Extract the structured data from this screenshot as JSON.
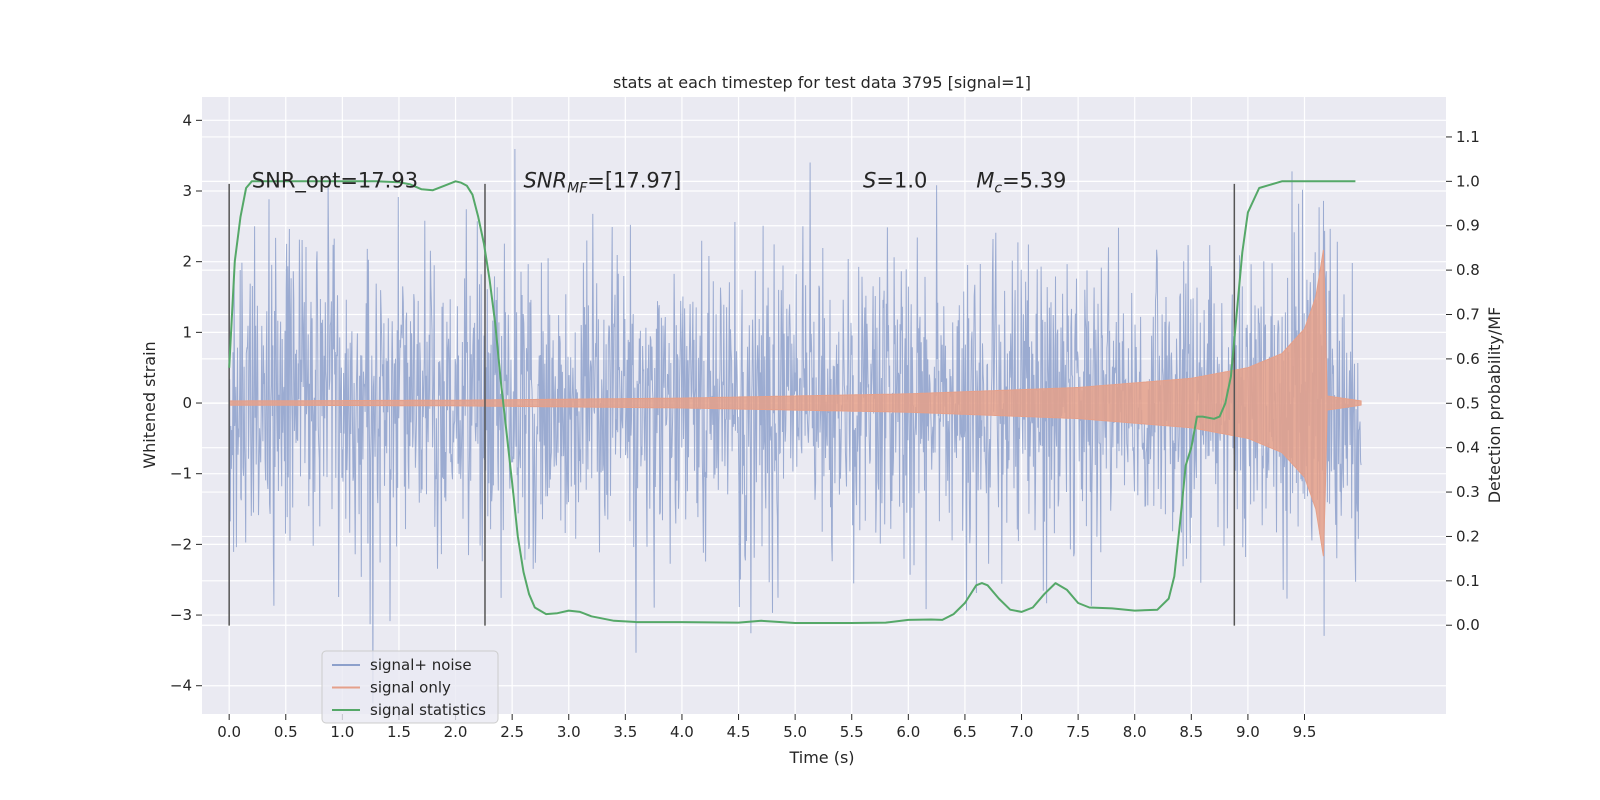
{
  "chart_data": {
    "type": "line",
    "title": "stats at each timestep for test data 3795 [signal=1]",
    "xlabel": "Time (s)",
    "ylabel": "Whitened strain",
    "y2label": "Detection probability/MF",
    "xlim": [
      -0.24,
      10.75
    ],
    "ylim": [
      -4.4,
      4.33
    ],
    "y2lim": [
      -0.2,
      1.19
    ],
    "xticks": [
      0.0,
      0.5,
      1.0,
      1.5,
      2.0,
      2.5,
      3.0,
      3.5,
      4.0,
      4.5,
      5.0,
      5.5,
      6.0,
      6.5,
      7.0,
      7.5,
      8.0,
      8.5,
      9.0,
      9.5
    ],
    "xtick_labels": [
      "0.0",
      "0.5",
      "1.0",
      "1.5",
      "2.0",
      "2.5",
      "3.0",
      "3.5",
      "4.0",
      "4.5",
      "5.0",
      "5.5",
      "6.0",
      "6.5",
      "7.0",
      "7.5",
      "8.0",
      "8.5",
      "9.0",
      "9.5"
    ],
    "yticks": [
      4,
      3,
      2,
      1,
      0,
      -1,
      -2,
      -3,
      -4
    ],
    "ytick_labels": [
      "4",
      "3",
      "2",
      "1",
      "0",
      "−1",
      "−2",
      "−3",
      "−4"
    ],
    "y2ticks": [
      1.1,
      1.0,
      0.9,
      0.8,
      0.7,
      0.6,
      0.5,
      0.4,
      0.3,
      0.2,
      0.1,
      0.0
    ],
    "y2tick_labels": [
      "1.1",
      "1.0",
      "0.9",
      "0.8",
      "0.7",
      "0.6",
      "0.5",
      "0.4",
      "0.3",
      "0.2",
      "0.1",
      "0.0"
    ],
    "grid": true,
    "legend_position": "lower-left",
    "annotations": [
      {
        "text": "SNR_opt=17.93",
        "x": 0.2,
        "y": 3.05
      },
      {
        "text_main": "SNR",
        "text_sub": "MF",
        "text_tail": "=[17.97]",
        "x": 2.6,
        "y": 3.05
      },
      {
        "text_main": "S",
        "text_tail": "=1.0",
        "x": 5.6,
        "y": 3.05
      },
      {
        "text_main": "M",
        "text_sub": "c",
        "text_tail": "=5.39",
        "x": 6.6,
        "y": 3.05
      }
    ],
    "vertical_lines": [
      {
        "x": 0.0,
        "y_range": [
          -3.15,
          3.1
        ]
      },
      {
        "x": 2.26,
        "y_range": [
          -3.15,
          3.1
        ]
      },
      {
        "x": 8.88,
        "y_range": [
          -3.15,
          3.1
        ]
      }
    ],
    "series": [
      {
        "name": "signal+ noise",
        "color": "#8da0cb",
        "axis": "left",
        "duration": 10.0,
        "sample_rate": 204.8,
        "noise_sigma": 1.0,
        "signal_peak_time": 9.67,
        "signal_peak_amp": 2.2
      },
      {
        "name": "signal only",
        "color": "#e5a08a",
        "axis": "left",
        "peak_time": 9.67,
        "peak_amplitude": 2.2,
        "envelope_points": [
          [
            0.0,
            0.03
          ],
          [
            2.0,
            0.04
          ],
          [
            4.0,
            0.07
          ],
          [
            6.0,
            0.13
          ],
          [
            7.5,
            0.22
          ],
          [
            8.5,
            0.35
          ],
          [
            9.0,
            0.5
          ],
          [
            9.3,
            0.7
          ],
          [
            9.5,
            1.05
          ],
          [
            9.6,
            1.5
          ],
          [
            9.67,
            2.2
          ],
          [
            9.7,
            0.1
          ],
          [
            10.0,
            0.03
          ]
        ]
      },
      {
        "name": "signal statistics",
        "color": "#55a868",
        "axis": "right",
        "x": [
          0.0,
          0.05,
          0.1,
          0.15,
          0.2,
          0.3,
          0.5,
          0.8,
          1.0,
          1.3,
          1.5,
          1.6,
          1.7,
          1.8,
          1.9,
          2.0,
          2.05,
          2.1,
          2.15,
          2.2,
          2.25,
          2.3,
          2.35,
          2.4,
          2.5,
          2.55,
          2.6,
          2.65,
          2.7,
          2.8,
          2.9,
          3.0,
          3.1,
          3.2,
          3.4,
          3.6,
          4.0,
          4.5,
          4.7,
          5.0,
          5.5,
          5.8,
          6.0,
          6.2,
          6.3,
          6.4,
          6.5,
          6.6,
          6.65,
          6.7,
          6.8,
          6.9,
          7.0,
          7.1,
          7.2,
          7.3,
          7.4,
          7.5,
          7.6,
          7.8,
          8.0,
          8.2,
          8.3,
          8.35,
          8.4,
          8.45,
          8.5,
          8.55,
          8.6,
          8.7,
          8.75,
          8.8,
          8.85,
          8.9,
          8.95,
          9.0,
          9.1,
          9.3,
          9.5,
          9.6,
          9.7,
          9.9,
          9.95
        ],
        "values": [
          0.58,
          0.82,
          0.92,
          0.985,
          1.0,
          1.0,
          1.0,
          1.0,
          1.0,
          1.0,
          0.998,
          0.993,
          0.982,
          0.98,
          0.99,
          1.0,
          0.997,
          0.99,
          0.97,
          0.92,
          0.86,
          0.78,
          0.68,
          0.55,
          0.32,
          0.2,
          0.12,
          0.07,
          0.04,
          0.025,
          0.027,
          0.033,
          0.03,
          0.02,
          0.01,
          0.007,
          0.007,
          0.006,
          0.01,
          0.005,
          0.005,
          0.006,
          0.012,
          0.013,
          0.012,
          0.025,
          0.05,
          0.09,
          0.095,
          0.09,
          0.06,
          0.035,
          0.03,
          0.04,
          0.07,
          0.095,
          0.08,
          0.05,
          0.04,
          0.038,
          0.033,
          0.035,
          0.06,
          0.11,
          0.23,
          0.36,
          0.4,
          0.47,
          0.47,
          0.465,
          0.47,
          0.5,
          0.56,
          0.7,
          0.84,
          0.93,
          0.985,
          1.0,
          1.0,
          1.0,
          1.0,
          1.0,
          1.0
        ]
      }
    ]
  }
}
